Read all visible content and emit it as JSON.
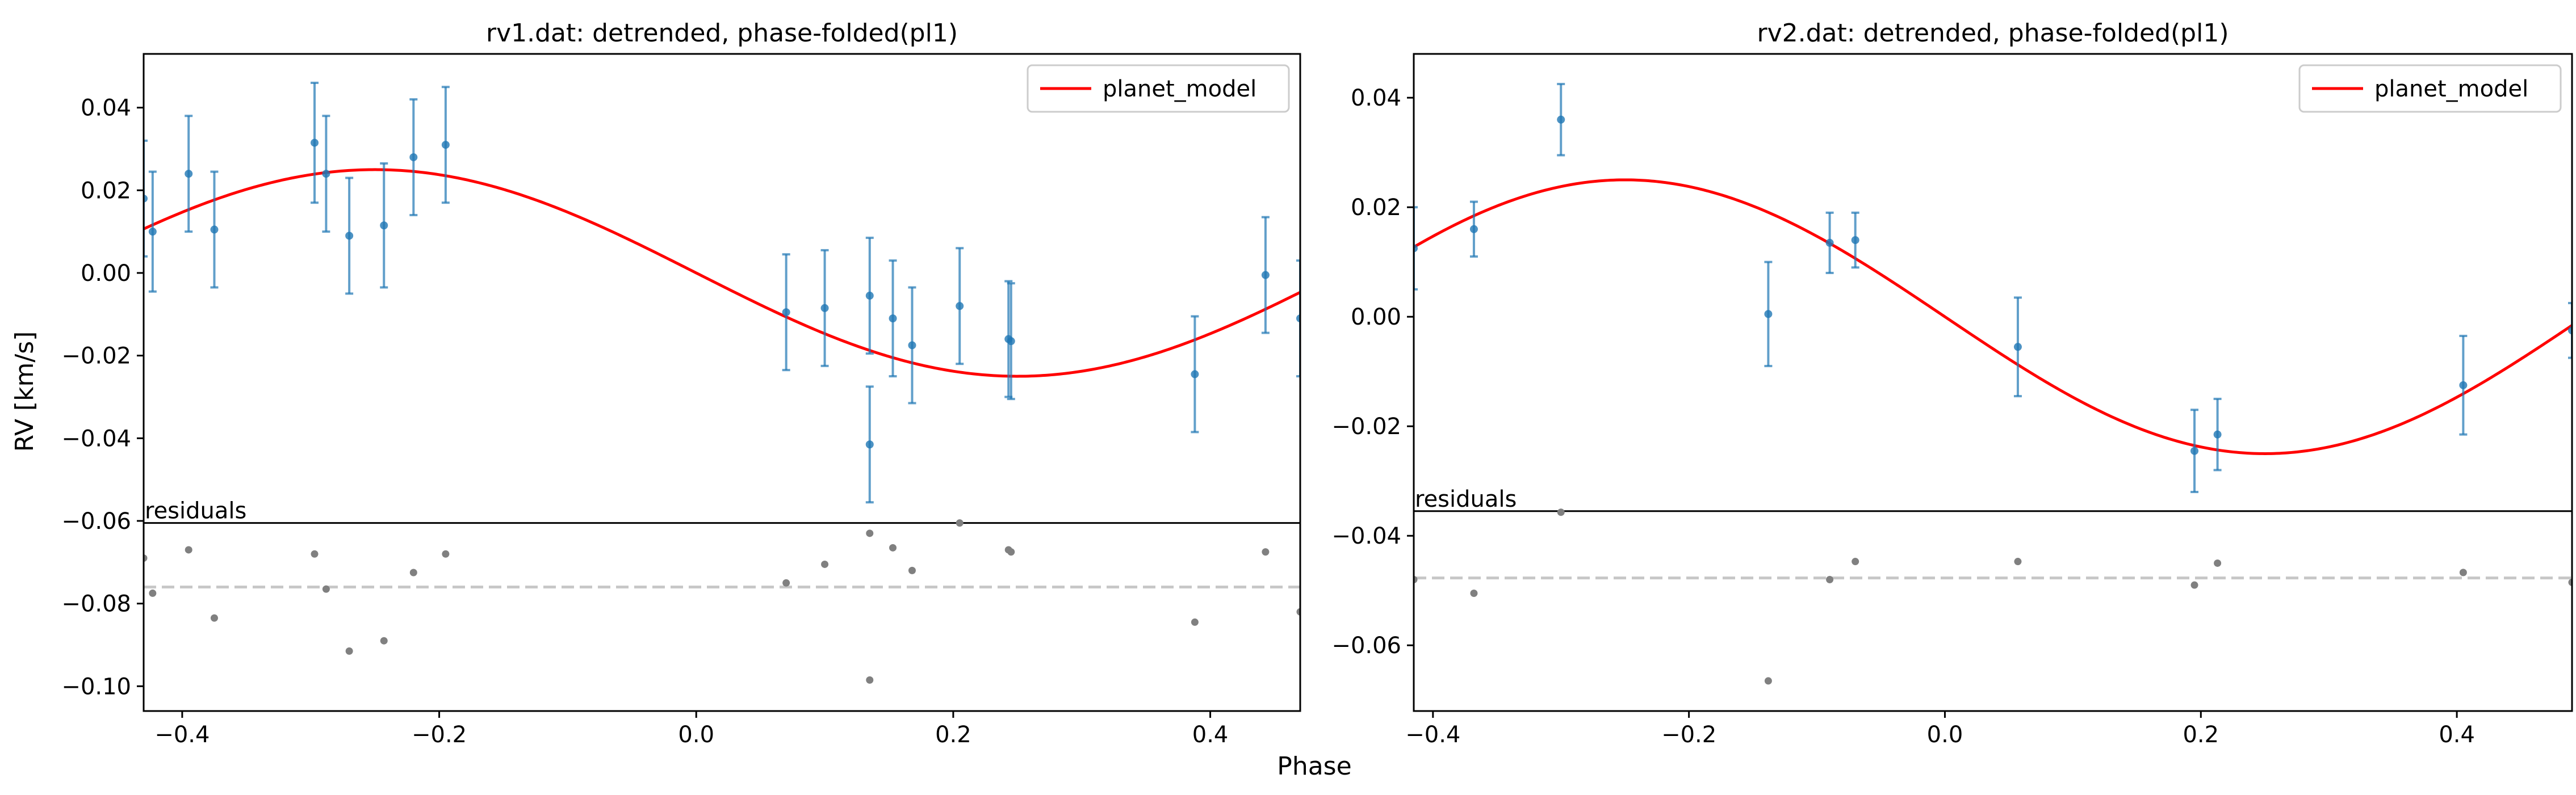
{
  "figure": {
    "xlabel": "Phase",
    "ylabel": "RV [km/s]"
  },
  "chart_data": [
    {
      "type": "scatter",
      "title": "rv1.dat: detrended, phase-folded(pl1)",
      "xlim": [
        -0.43,
        0.47
      ],
      "ylim": [
        -0.106,
        0.053
      ],
      "x_ticks": [
        -0.4,
        -0.2,
        0.0,
        0.2,
        0.4
      ],
      "x_tick_labels": [
        "−0.4",
        "−0.2",
        "0.0",
        "0.2",
        "0.4"
      ],
      "y_ticks": [
        0.04,
        0.02,
        0.0,
        -0.02,
        -0.04,
        -0.06,
        -0.08,
        -0.1
      ],
      "y_tick_labels": [
        "0.04",
        "0.02",
        "0.00",
        "−0.02",
        "−0.04",
        "−0.06",
        "−0.08",
        "−0.10"
      ],
      "legend": {
        "label": "planet_model",
        "placement": "top-right"
      },
      "model": {
        "name": "planet_model",
        "color": "#ff0000",
        "amplitude": 0.025,
        "phase_of_max": -0.25
      },
      "data_color": "#1f77b4",
      "residual_color": "#808080",
      "residuals_label": "residuals",
      "residual_separator_y": -0.0605,
      "residual_baseline_y": -0.076,
      "points": [
        {
          "x": -0.43,
          "y": 0.018,
          "err": 0.014
        },
        {
          "x": -0.423,
          "y": 0.01,
          "err": 0.0145
        },
        {
          "x": -0.395,
          "y": 0.024,
          "err": 0.014
        },
        {
          "x": -0.375,
          "y": 0.0105,
          "err": 0.014
        },
        {
          "x": -0.297,
          "y": 0.0315,
          "err": 0.0145
        },
        {
          "x": -0.288,
          "y": 0.024,
          "err": 0.014
        },
        {
          "x": -0.27,
          "y": 0.009,
          "err": 0.014
        },
        {
          "x": -0.243,
          "y": 0.0115,
          "err": 0.015
        },
        {
          "x": -0.22,
          "y": 0.028,
          "err": 0.014
        },
        {
          "x": -0.195,
          "y": 0.031,
          "err": 0.014
        },
        {
          "x": 0.07,
          "y": -0.0095,
          "err": 0.014
        },
        {
          "x": 0.1,
          "y": -0.0085,
          "err": 0.014
        },
        {
          "x": 0.135,
          "y": -0.0055,
          "err": 0.014
        },
        {
          "x": 0.135,
          "y": -0.0415,
          "err": 0.014
        },
        {
          "x": 0.153,
          "y": -0.011,
          "err": 0.014
        },
        {
          "x": 0.168,
          "y": -0.0175,
          "err": 0.014
        },
        {
          "x": 0.205,
          "y": -0.008,
          "err": 0.014
        },
        {
          "x": 0.243,
          "y": -0.016,
          "err": 0.014
        },
        {
          "x": 0.245,
          "y": -0.0165,
          "err": 0.014
        },
        {
          "x": 0.388,
          "y": -0.0245,
          "err": 0.014
        },
        {
          "x": 0.443,
          "y": -0.0005,
          "err": 0.014
        },
        {
          "x": 0.47,
          "y": -0.011,
          "err": 0.014
        }
      ],
      "residuals": [
        {
          "x": -0.43,
          "y": -0.069
        },
        {
          "x": -0.423,
          "y": -0.0775
        },
        {
          "x": -0.395,
          "y": -0.067
        },
        {
          "x": -0.375,
          "y": -0.0835
        },
        {
          "x": -0.297,
          "y": -0.068
        },
        {
          "x": -0.288,
          "y": -0.0765
        },
        {
          "x": -0.27,
          "y": -0.0915
        },
        {
          "x": -0.243,
          "y": -0.089
        },
        {
          "x": -0.22,
          "y": -0.0725
        },
        {
          "x": -0.195,
          "y": -0.068
        },
        {
          "x": 0.07,
          "y": -0.075
        },
        {
          "x": 0.1,
          "y": -0.0705
        },
        {
          "x": 0.135,
          "y": -0.063
        },
        {
          "x": 0.135,
          "y": -0.0985
        },
        {
          "x": 0.153,
          "y": -0.0665
        },
        {
          "x": 0.168,
          "y": -0.072
        },
        {
          "x": 0.205,
          "y": -0.0605
        },
        {
          "x": 0.243,
          "y": -0.067
        },
        {
          "x": 0.245,
          "y": -0.0675
        },
        {
          "x": 0.388,
          "y": -0.0845
        },
        {
          "x": 0.443,
          "y": -0.0675
        },
        {
          "x": 0.47,
          "y": -0.082
        }
      ]
    },
    {
      "type": "scatter",
      "title": "rv2.dat: detrended, phase-folded(pl1)",
      "xlim": [
        -0.415,
        0.49
      ],
      "ylim": [
        -0.072,
        0.048
      ],
      "x_ticks": [
        -0.4,
        -0.2,
        0.0,
        0.2,
        0.4
      ],
      "x_tick_labels": [
        "−0.4",
        "−0.2",
        "0.0",
        "0.2",
        "0.4"
      ],
      "y_ticks": [
        0.04,
        0.02,
        0.0,
        -0.02,
        -0.04,
        -0.06
      ],
      "y_tick_labels": [
        "0.04",
        "0.02",
        "0.00",
        "−0.02",
        "−0.04",
        "−0.06"
      ],
      "legend": {
        "label": "planet_model",
        "placement": "top-right"
      },
      "model": {
        "name": "planet_model",
        "color": "#ff0000",
        "amplitude": 0.025,
        "phase_of_max": -0.25
      },
      "data_color": "#1f77b4",
      "residual_color": "#808080",
      "residuals_label": "residuals",
      "residual_separator_y": -0.0355,
      "residual_baseline_y": -0.0477,
      "points": [
        {
          "x": -0.415,
          "y": 0.0125,
          "err": 0.0075
        },
        {
          "x": -0.368,
          "y": 0.016,
          "err": 0.005
        },
        {
          "x": -0.3,
          "y": 0.036,
          "err": 0.0065
        },
        {
          "x": -0.138,
          "y": 0.0005,
          "err": 0.0095
        },
        {
          "x": -0.09,
          "y": 0.0135,
          "err": 0.0055
        },
        {
          "x": -0.07,
          "y": 0.014,
          "err": 0.005
        },
        {
          "x": 0.057,
          "y": -0.0055,
          "err": 0.009
        },
        {
          "x": 0.195,
          "y": -0.0245,
          "err": 0.0075
        },
        {
          "x": 0.213,
          "y": -0.0215,
          "err": 0.0065
        },
        {
          "x": 0.405,
          "y": -0.0125,
          "err": 0.009
        },
        {
          "x": 0.49,
          "y": -0.0025,
          "err": 0.005
        }
      ],
      "residuals": [
        {
          "x": -0.415,
          "y": -0.048
        },
        {
          "x": -0.368,
          "y": -0.0505
        },
        {
          "x": -0.3,
          "y": -0.0357
        },
        {
          "x": -0.138,
          "y": -0.0665
        },
        {
          "x": -0.09,
          "y": -0.048
        },
        {
          "x": -0.07,
          "y": -0.0447
        },
        {
          "x": 0.057,
          "y": -0.0447
        },
        {
          "x": 0.195,
          "y": -0.049
        },
        {
          "x": 0.213,
          "y": -0.045
        },
        {
          "x": 0.405,
          "y": -0.0467
        },
        {
          "x": 0.49,
          "y": -0.0485
        }
      ]
    }
  ]
}
